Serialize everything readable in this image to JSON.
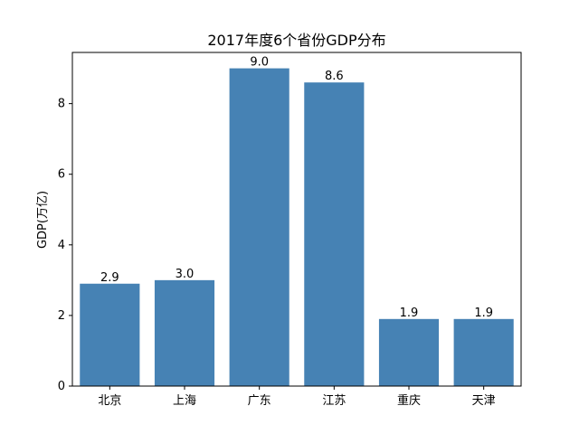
{
  "chart_data": {
    "type": "bar",
    "title": "2017年度6个省份GDP分布",
    "xlabel": "",
    "ylabel": "GDP(万亿)",
    "categories": [
      "北京",
      "上海",
      "广东",
      "江苏",
      "重庆",
      "天津"
    ],
    "values": [
      2.9,
      3.0,
      9.0,
      8.6,
      1.9,
      1.9
    ],
    "value_labels": [
      "2.9",
      "3.0",
      "9.0",
      "8.6",
      "1.9",
      "1.9"
    ],
    "ylim": [
      0,
      9.45
    ],
    "yticks": [
      0,
      2,
      4,
      6,
      8
    ],
    "bar_color": "#4682b4",
    "grid": false,
    "legend": "none"
  }
}
